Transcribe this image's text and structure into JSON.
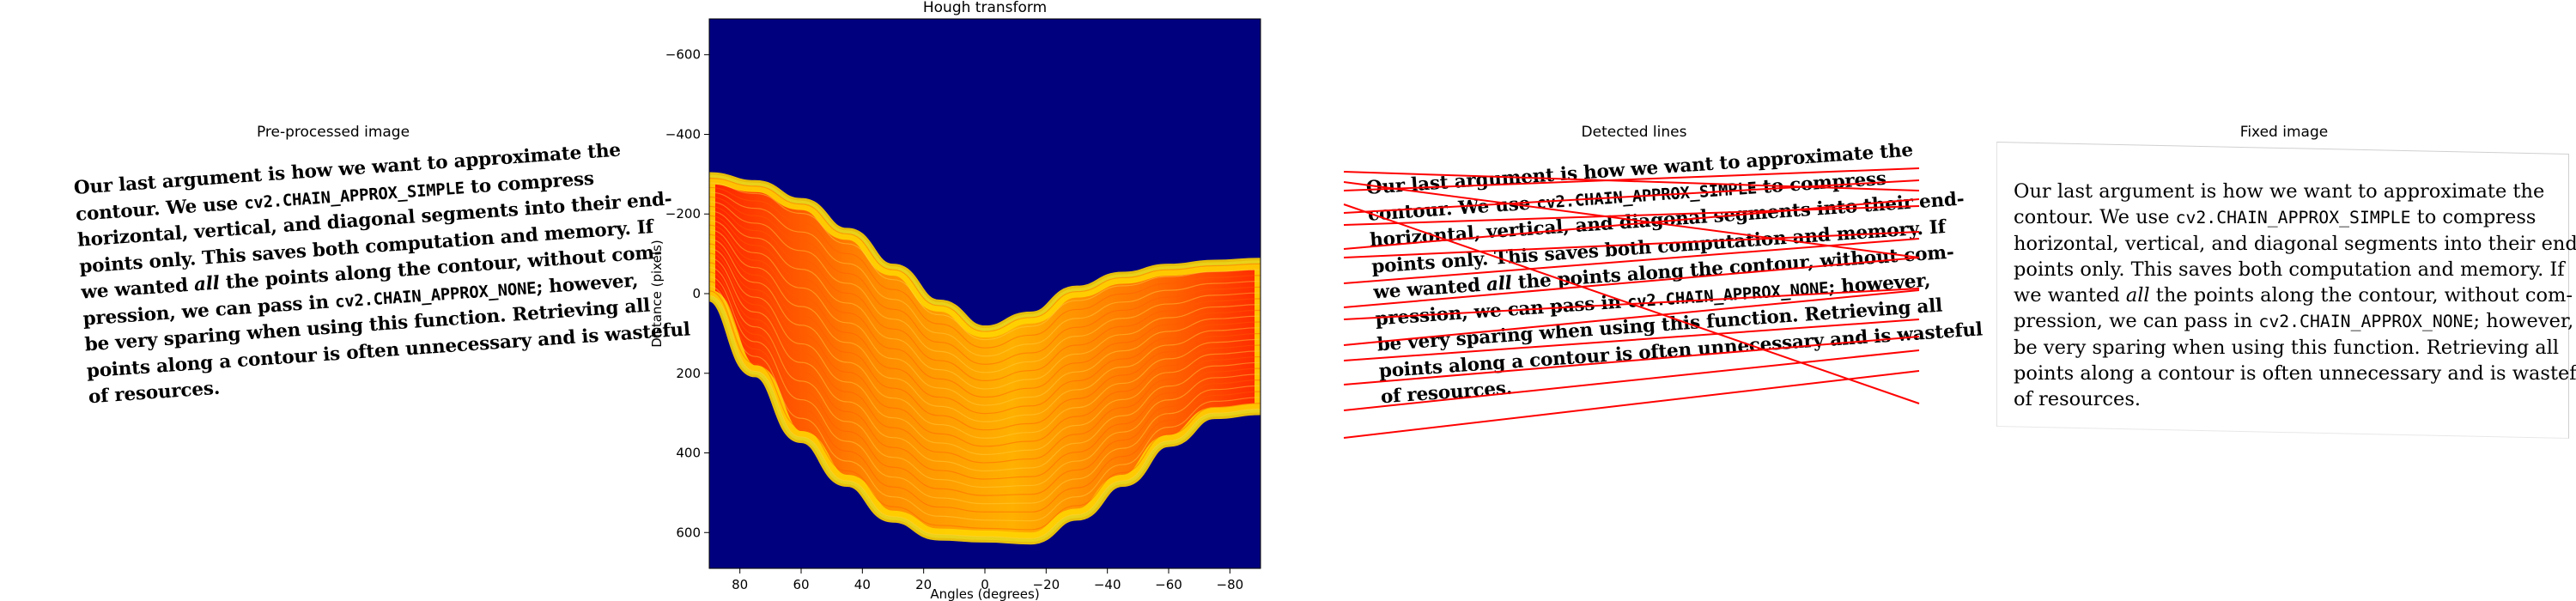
{
  "panels": {
    "preprocessed": {
      "title": "Pre-processed image"
    },
    "hough": {
      "title": "Hough transform",
      "xlabel": "Angles (degrees)",
      "ylabel": "Distance (pixels)"
    },
    "detected": {
      "title": "Detected lines"
    },
    "fixed": {
      "title": "Fixed image"
    }
  },
  "text_lines": [
    [
      "Our last argument is how we want to approximate the"
    ],
    [
      "contour.  We use ",
      {
        "mono": "cv2.CHAIN_APPROX_SIMPLE"
      },
      " to compress"
    ],
    [
      "horizontal, vertical, and diagonal segments into their end-"
    ],
    [
      "points only.  This saves both computation and memory.  If"
    ],
    [
      "we wanted ",
      {
        "em": "all"
      },
      " the points along the contour, without com-"
    ],
    [
      "pression, we can pass in ",
      {
        "mono": "cv2.CHAIN_APPROX_NONE"
      },
      "; however,"
    ],
    [
      "be very sparing when using this function.  Retrieving all"
    ],
    [
      "points along a contour is often unnecessary and is wasteful"
    ],
    [
      "of resources."
    ]
  ],
  "colors": {
    "hough_background": "#00007f",
    "detected_lines": "#ff0000"
  },
  "chart_data": {
    "type": "heatmap",
    "title": "Hough transform",
    "xlabel": "Angles (degrees)",
    "ylabel": "Distance (pixels)",
    "colormap": "jet",
    "x_axis_reversed": true,
    "y_axis_inverted": true,
    "xlim": [
      90,
      -90
    ],
    "ylim": [
      -690,
      690
    ],
    "x_ticks": [
      80,
      60,
      40,
      20,
      0,
      -20,
      -40,
      -60,
      -80
    ],
    "y_ticks": [
      -600,
      -400,
      -200,
      0,
      200,
      400,
      600
    ],
    "band_envelope": {
      "angles": [
        90,
        75,
        60,
        45,
        30,
        15,
        0,
        -15,
        -30,
        -45,
        -60,
        -75,
        -90
      ],
      "upper_distance": [
        -290,
        -270,
        -225,
        -150,
        -60,
        30,
        95,
        60,
        -5,
        -40,
        -60,
        -70,
        -75
      ],
      "lower_distance": [
        5,
        195,
        360,
        470,
        560,
        605,
        610,
        615,
        555,
        470,
        370,
        300,
        290
      ]
    }
  }
}
